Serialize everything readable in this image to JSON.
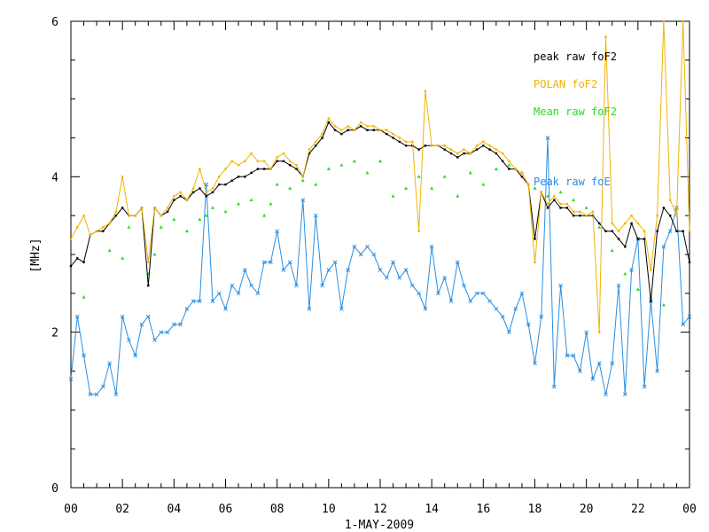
{
  "chart_data": {
    "type": "line",
    "ylabel": "[MHz]",
    "xlabel": "1-MAY-2009",
    "xlim": [
      0,
      24
    ],
    "ylim": [
      0,
      6
    ],
    "x_tick_labels": [
      "00",
      "02",
      "04",
      "06",
      "08",
      "10",
      "12",
      "14",
      "16",
      "18",
      "20",
      "22",
      "00"
    ],
    "y_tick_labels": [
      "0",
      "2",
      "4",
      "6"
    ],
    "grid": false,
    "legend_position": "top-right",
    "series": [
      {
        "name": "peak raw foF2",
        "color": "#000000",
        "x": [
          0,
          0.25,
          0.5,
          0.75,
          1,
          1.25,
          1.5,
          1.75,
          2,
          2.25,
          2.5,
          2.75,
          3,
          3.25,
          3.5,
          3.75,
          4,
          4.25,
          4.5,
          4.75,
          5,
          5.25,
          5.5,
          5.75,
          6,
          6.25,
          6.5,
          6.75,
          7,
          7.25,
          7.5,
          7.75,
          8,
          8.25,
          8.5,
          8.75,
          9,
          9.25,
          9.5,
          9.75,
          10,
          10.25,
          10.5,
          10.75,
          11,
          11.25,
          11.5,
          11.75,
          12,
          12.25,
          12.5,
          12.75,
          13,
          13.25,
          13.5,
          13.75,
          14,
          14.25,
          14.5,
          14.75,
          15,
          15.25,
          15.5,
          15.75,
          16,
          16.25,
          16.5,
          16.75,
          17,
          17.25,
          17.5,
          17.75,
          18,
          18.25,
          18.5,
          18.75,
          19,
          19.25,
          19.5,
          19.75,
          20,
          20.25,
          20.5,
          20.75,
          21,
          21.25,
          21.5,
          21.75,
          22,
          22.25,
          22.5,
          22.75,
          23,
          23.25,
          23.5,
          23.75,
          24
        ],
        "y": [
          2.85,
          2.95,
          2.9,
          3.25,
          3.3,
          3.3,
          3.4,
          3.5,
          3.6,
          3.5,
          3.5,
          3.6,
          2.6,
          3.6,
          3.5,
          3.55,
          3.7,
          3.75,
          3.7,
          3.8,
          3.85,
          3.75,
          3.8,
          3.9,
          3.9,
          3.95,
          4.0,
          4.0,
          4.05,
          4.1,
          4.1,
          4.1,
          4.2,
          4.2,
          4.15,
          4.1,
          4.0,
          4.3,
          4.4,
          4.5,
          4.7,
          4.6,
          4.55,
          4.6,
          4.6,
          4.65,
          4.6,
          4.6,
          4.6,
          4.55,
          4.5,
          4.45,
          4.4,
          4.4,
          4.35,
          4.4,
          4.4,
          4.4,
          4.35,
          4.3,
          4.25,
          4.3,
          4.3,
          4.35,
          4.4,
          4.35,
          4.3,
          4.2,
          4.1,
          4.1,
          4.0,
          3.9,
          3.2,
          3.8,
          3.6,
          3.7,
          3.6,
          3.6,
          3.5,
          3.5,
          3.5,
          3.5,
          3.4,
          3.3,
          3.3,
          3.2,
          3.1,
          3.4,
          3.2,
          3.2,
          2.4,
          3.3,
          3.6,
          3.5,
          3.3,
          3.3,
          2.9
        ]
      },
      {
        "name": "POLAN foF2",
        "color": "#f0b400",
        "x": [
          0,
          0.25,
          0.5,
          0.75,
          1,
          1.25,
          1.5,
          1.75,
          2,
          2.25,
          2.5,
          2.75,
          3,
          3.25,
          3.5,
          3.75,
          4,
          4.25,
          4.5,
          4.75,
          5,
          5.25,
          5.5,
          5.75,
          6,
          6.25,
          6.5,
          6.75,
          7,
          7.25,
          7.5,
          7.75,
          8,
          8.25,
          8.5,
          8.75,
          9,
          9.25,
          9.5,
          9.75,
          10,
          10.25,
          10.5,
          10.75,
          11,
          11.25,
          11.5,
          11.75,
          12,
          12.25,
          12.5,
          12.75,
          13,
          13.25,
          13.5,
          13.75,
          14,
          14.25,
          14.5,
          14.75,
          15,
          15.25,
          15.5,
          15.75,
          16,
          16.25,
          16.5,
          16.75,
          17,
          17.25,
          17.5,
          17.75,
          18,
          18.25,
          18.5,
          18.75,
          19,
          19.25,
          19.5,
          19.75,
          20,
          20.25,
          20.5,
          20.75,
          21,
          21.25,
          21.5,
          21.75,
          22,
          22.25,
          22.5,
          22.75,
          23,
          23.25,
          23.5,
          23.75,
          24
        ],
        "y": [
          3.2,
          3.35,
          3.5,
          3.25,
          3.3,
          3.35,
          3.4,
          3.55,
          4.0,
          3.5,
          3.5,
          3.6,
          2.9,
          3.6,
          3.5,
          3.6,
          3.75,
          3.8,
          3.7,
          3.85,
          4.1,
          3.8,
          3.85,
          4.0,
          4.1,
          4.2,
          4.15,
          4.2,
          4.3,
          4.2,
          4.2,
          4.1,
          4.25,
          4.3,
          4.2,
          4.15,
          4.0,
          4.35,
          4.45,
          4.55,
          4.75,
          4.65,
          4.6,
          4.65,
          4.6,
          4.7,
          4.65,
          4.65,
          4.6,
          4.6,
          4.55,
          4.5,
          4.45,
          4.45,
          3.3,
          5.1,
          4.4,
          4.4,
          4.4,
          4.35,
          4.3,
          4.35,
          4.3,
          4.4,
          4.45,
          4.4,
          4.35,
          4.3,
          4.2,
          4.1,
          4.05,
          3.9,
          2.9,
          3.8,
          3.65,
          3.75,
          3.65,
          3.65,
          3.55,
          3.55,
          3.5,
          3.55,
          2.0,
          5.8,
          3.4,
          3.3,
          3.4,
          3.5,
          3.4,
          3.3,
          2.8,
          3.5,
          6.0,
          3.7,
          3.5,
          6.0,
          3.3
        ]
      },
      {
        "name": "Mean raw foF2",
        "color": "#22dd22",
        "x": [
          0.5,
          1.5,
          2,
          2.25,
          3,
          3.25,
          3.5,
          4,
          4.5,
          5,
          5.25,
          5.5,
          6,
          6.5,
          7,
          7.5,
          7.75,
          8,
          8.5,
          9,
          9.5,
          10,
          10.5,
          11,
          11.5,
          12,
          12.5,
          13,
          13.5,
          14,
          14.5,
          15,
          15.5,
          16,
          16.5,
          17,
          17.5,
          18,
          18.5,
          19,
          19.5,
          20,
          20.5,
          21,
          21.5,
          22,
          22.5,
          23
        ],
        "y": [
          2.45,
          3.05,
          2.95,
          3.35,
          2.75,
          3.0,
          3.35,
          3.45,
          3.3,
          3.45,
          3.5,
          3.6,
          3.55,
          3.65,
          3.7,
          3.5,
          3.65,
          3.9,
          3.85,
          3.95,
          3.9,
          4.1,
          4.15,
          4.2,
          4.05,
          4.2,
          3.75,
          3.85,
          4.0,
          3.85,
          4.0,
          3.75,
          4.05,
          3.9,
          4.1,
          4.15,
          4.05,
          3.85,
          3.75,
          3.8,
          3.7,
          3.6,
          3.35,
          3.05,
          2.75,
          2.55,
          2.45,
          2.35
        ]
      },
      {
        "name": "Peak raw foE",
        "color": "#2a8ee0",
        "x": [
          0,
          0.25,
          0.5,
          0.75,
          1,
          1.25,
          1.5,
          1.75,
          2,
          2.25,
          2.5,
          2.75,
          3,
          3.25,
          3.5,
          3.75,
          4,
          4.25,
          4.5,
          4.75,
          5,
          5.25,
          5.5,
          5.75,
          6,
          6.25,
          6.5,
          6.75,
          7,
          7.25,
          7.5,
          7.75,
          8,
          8.25,
          8.5,
          8.75,
          9,
          9.25,
          9.5,
          9.75,
          10,
          10.25,
          10.5,
          10.75,
          11,
          11.25,
          11.5,
          11.75,
          12,
          12.25,
          12.5,
          12.75,
          13,
          13.25,
          13.5,
          13.75,
          14,
          14.25,
          14.5,
          14.75,
          15,
          15.25,
          15.5,
          15.75,
          16,
          16.25,
          16.5,
          16.75,
          17,
          17.25,
          17.5,
          17.75,
          18,
          18.25,
          18.5,
          18.75,
          19,
          19.25,
          19.5,
          19.75,
          20,
          20.25,
          20.5,
          20.75,
          21,
          21.25,
          21.5,
          21.75,
          22,
          22.25,
          22.5,
          22.75,
          23,
          23.25,
          23.5,
          23.75,
          24
        ],
        "y": [
          1.4,
          2.2,
          1.7,
          1.2,
          1.2,
          1.3,
          1.6,
          1.2,
          2.2,
          1.9,
          1.7,
          2.1,
          2.2,
          1.9,
          2.0,
          2.0,
          2.1,
          2.1,
          2.3,
          2.4,
          2.4,
          3.9,
          2.4,
          2.5,
          2.3,
          2.6,
          2.5,
          2.8,
          2.6,
          2.5,
          2.9,
          2.9,
          3.3,
          2.8,
          2.9,
          2.6,
          3.7,
          2.3,
          3.5,
          2.6,
          2.8,
          2.9,
          2.3,
          2.8,
          3.1,
          3.0,
          3.1,
          3.0,
          2.8,
          2.7,
          2.9,
          2.7,
          2.8,
          2.6,
          2.5,
          2.3,
          3.1,
          2.5,
          2.7,
          2.4,
          2.9,
          2.6,
          2.4,
          2.5,
          2.5,
          2.4,
          2.3,
          2.2,
          2.0,
          2.3,
          2.5,
          2.1,
          1.6,
          2.2,
          4.5,
          1.3,
          2.6,
          1.7,
          1.7,
          1.5,
          2.0,
          1.4,
          1.6,
          1.2,
          1.6,
          2.6,
          1.2,
          2.8,
          3.2,
          1.3,
          2.4,
          1.5,
          3.1,
          3.3,
          3.6,
          2.1,
          2.2
        ]
      }
    ],
    "legend": {
      "peak": "peak raw foF2",
      "polan": "POLAN foF2",
      "mean": "Mean raw foF2",
      "foe": "Peak raw foE"
    },
    "colors": {
      "peak": "#000000",
      "polan": "#f0b400",
      "mean": "#22dd22",
      "foe": "#2a8ee0"
    }
  }
}
